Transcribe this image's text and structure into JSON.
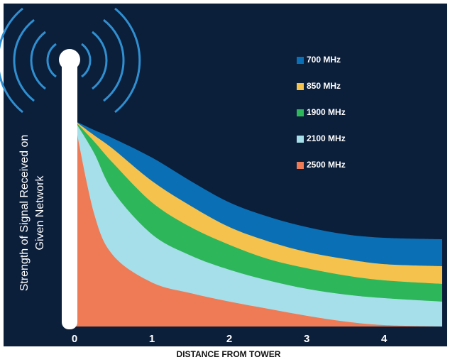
{
  "chart_data": {
    "type": "area",
    "x_label": "DISTANCE FROM TOWER",
    "y_label_lines": [
      "Strength of Signal Received on",
      "Given Network"
    ],
    "x": [
      0,
      0.25,
      0.5,
      1,
      1.5,
      2,
      2.5,
      3,
      3.5,
      4,
      4.75
    ],
    "xlim": [
      0,
      4.75
    ],
    "xticks": [
      0,
      1,
      2,
      3,
      4
    ],
    "ylim": [
      0,
      100
    ],
    "legend": "top-right",
    "series": [
      {
        "name": "700 MHz",
        "color": "#0a6fb5",
        "values": [
          100,
          95.5,
          91.4,
          82.1,
          70.7,
          60.3,
          53.4,
          48.3,
          44.8,
          43.1,
          42.4
        ]
      },
      {
        "name": "850 MHz",
        "color": "#f4c24d",
        "values": [
          100,
          93,
          86.2,
          70.7,
          58.6,
          48.3,
          41.4,
          36.2,
          32.8,
          30.3,
          29.3
        ]
      },
      {
        "name": "1900 MHz",
        "color": "#2db65a",
        "values": [
          100,
          90,
          79.3,
          60.3,
          48.3,
          39.7,
          32.8,
          28.3,
          24.8,
          22.4,
          20.7
        ]
      },
      {
        "name": "2100 MHz",
        "color": "#a6dfea",
        "values": [
          100,
          84.5,
          65.5,
          44.8,
          34.5,
          27.6,
          22.4,
          18.3,
          15.5,
          13.8,
          12.1
        ]
      },
      {
        "name": "2500 MHz",
        "color": "#ee7b56",
        "values": [
          100,
          55.2,
          34.5,
          21.4,
          16.2,
          12.1,
          8.6,
          5.2,
          2.4,
          0.7,
          0
        ]
      }
    ]
  }
}
